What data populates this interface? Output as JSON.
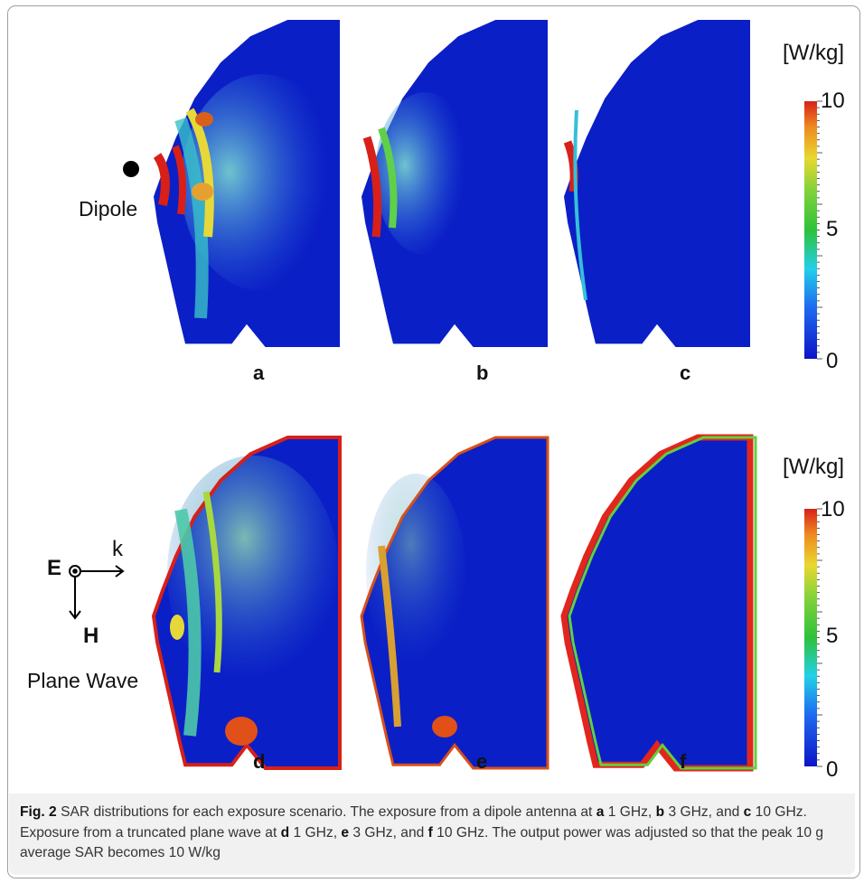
{
  "figure": {
    "panels": [
      {
        "letter": "a",
        "source": "Dipole",
        "frequency": "1 GHz"
      },
      {
        "letter": "b",
        "source": "Dipole",
        "frequency": "3 GHz"
      },
      {
        "letter": "c",
        "source": "Dipole",
        "frequency": "10 GHz"
      },
      {
        "letter": "d",
        "source": "Plane Wave",
        "frequency": "1 GHz"
      },
      {
        "letter": "e",
        "source": "Plane Wave",
        "frequency": "3 GHz"
      },
      {
        "letter": "f",
        "source": "Plane Wave",
        "frequency": "10 GHz"
      }
    ],
    "source_labels": {
      "top": "Dipole",
      "bottom": "Plane Wave"
    },
    "plane_wave_axes": {
      "e": "E",
      "k": "k",
      "h": "H"
    },
    "colorbar": {
      "unit": "[W/kg]",
      "min_label": "0",
      "mid_label": "5",
      "max_label": "10",
      "min": 0,
      "max": 10
    },
    "colors": {
      "low": "#0b1fc6",
      "mid": "#2ec23a",
      "high": "#e0261d"
    }
  },
  "caption": {
    "label": "Fig. 2",
    "parts": [
      {
        "t": "text",
        "v": "  SAR distributions for each exposure scenario. The exposure from a dipole antenna at "
      },
      {
        "t": "bold",
        "v": "a"
      },
      {
        "t": "text",
        "v": " 1 GHz, "
      },
      {
        "t": "bold",
        "v": "b"
      },
      {
        "t": "text",
        "v": " 3 GHz, and "
      },
      {
        "t": "bold",
        "v": "c"
      },
      {
        "t": "text",
        "v": " 10 GHz. Exposure from a truncated plane wave at "
      },
      {
        "t": "bold",
        "v": "d"
      },
      {
        "t": "text",
        "v": " 1 GHz, "
      },
      {
        "t": "bold",
        "v": "e"
      },
      {
        "t": "text",
        "v": " 3 GHz, and "
      },
      {
        "t": "bold",
        "v": "f"
      },
      {
        "t": "text",
        "v": " 10 GHz. The output power was adjusted so that the peak 10 g average SAR becomes 10 W/kg"
      }
    ]
  }
}
